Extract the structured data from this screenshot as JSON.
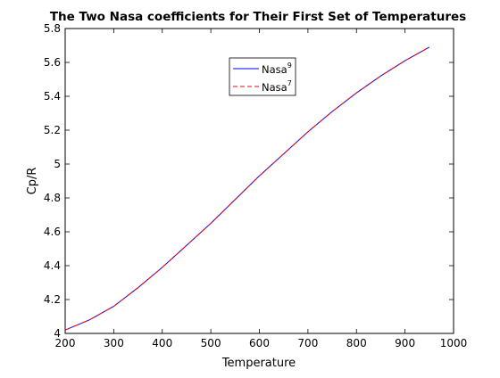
{
  "chart_data": {
    "type": "line",
    "title": "The Two Nasa coefficients for Their First Set of Temperatures",
    "xlabel": "Temperature",
    "ylabel": "Cp/R",
    "xlim": [
      200,
      1000
    ],
    "ylim": [
      4,
      5.8
    ],
    "xticks": [
      200,
      300,
      400,
      500,
      600,
      700,
      800,
      900,
      1000
    ],
    "yticks": [
      4,
      4.2,
      4.4,
      4.6,
      4.8,
      5,
      5.2,
      5.4,
      5.6,
      5.8
    ],
    "xtick_labels": [
      "200",
      "300",
      "400",
      "500",
      "600",
      "700",
      "800",
      "900",
      "1000"
    ],
    "ytick_labels": [
      "4",
      "4.2",
      "4.4",
      "4.6",
      "4.8",
      "5",
      "5.2",
      "5.4",
      "5.6",
      "5.8"
    ],
    "grid": false,
    "legend_position": "top-center",
    "x": [
      200,
      250,
      300,
      350,
      400,
      450,
      500,
      550,
      600,
      650,
      700,
      750,
      800,
      850,
      900,
      950
    ],
    "series": [
      {
        "name": "Nasa",
        "name_sup": "9",
        "color": "#0000ff",
        "style": "solid",
        "values": [
          4.02,
          4.08,
          4.16,
          4.27,
          4.39,
          4.52,
          4.65,
          4.79,
          4.93,
          5.06,
          5.19,
          5.31,
          5.42,
          5.52,
          5.61,
          5.69
        ]
      },
      {
        "name": "Nasa",
        "name_sup": "7",
        "color": "#ff0000",
        "style": "dashed",
        "values": [
          4.02,
          4.08,
          4.16,
          4.27,
          4.39,
          4.52,
          4.65,
          4.79,
          4.93,
          5.06,
          5.19,
          5.31,
          5.42,
          5.52,
          5.61,
          5.69
        ]
      }
    ]
  }
}
